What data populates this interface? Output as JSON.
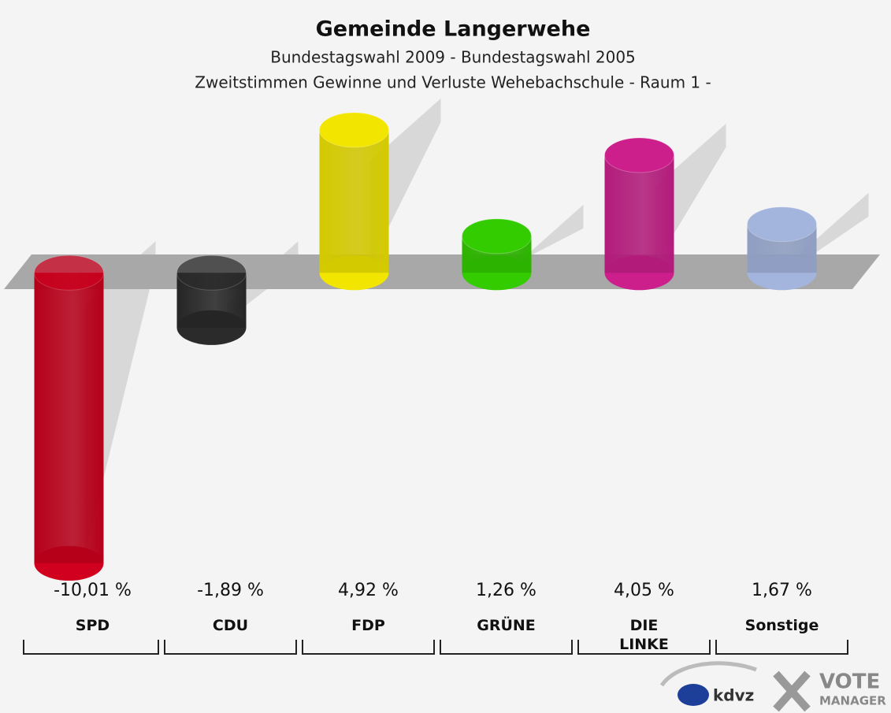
{
  "chart_data": {
    "type": "bar3d",
    "title": "Gemeinde Langerwehe",
    "subtitle": "Bundestagswahl 2009 - Bundestagswahl 2005",
    "subtitle2": "Zweitstimmen Gewinne und Verluste Wehebachschule - Raum 1 -",
    "categories": [
      "SPD",
      "CDU",
      "FDP",
      "GRÜNE",
      "DIE LINKE",
      "Sonstige"
    ],
    "values": [
      -10.01,
      -1.89,
      4.92,
      1.26,
      4.05,
      1.67
    ],
    "value_labels": [
      "-10,01 %",
      "-1,89 %",
      "4,92 %",
      "1,26 %",
      "4,05 %",
      "1,67 %"
    ],
    "colors": [
      "#d0001e",
      "#2b2b2b",
      "#f2e600",
      "#33cc00",
      "#cc1f8c",
      "#a3b4dd"
    ]
  },
  "logo": {
    "kdvz": "kdvz",
    "vote": "VOTE",
    "manager": "MANAGER"
  }
}
